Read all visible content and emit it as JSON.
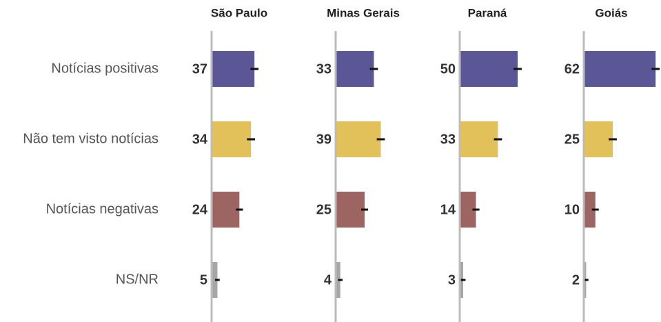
{
  "chart_data": {
    "type": "bar",
    "categories": [
      "Notícias positivas",
      "Não tem visto notícias",
      "Notícias negativas",
      "NS/NR"
    ],
    "colors": [
      "#5b5796",
      "#e3c15a",
      "#9c6562",
      "#a6a6a6"
    ],
    "xlim": [
      0,
      100
    ],
    "series": [
      {
        "name": "São Paulo",
        "values": [
          37,
          34,
          24,
          5
        ],
        "errors": [
          3.5,
          3.5,
          3,
          2
        ]
      },
      {
        "name": "Minas Gerais",
        "values": [
          33,
          39,
          25,
          4
        ],
        "errors": [
          3.5,
          3.5,
          3,
          2
        ]
      },
      {
        "name": "Paraná",
        "values": [
          50,
          33,
          14,
          3
        ],
        "errors": [
          3.5,
          3.5,
          3,
          2
        ]
      },
      {
        "name": "Goiás",
        "values": [
          62,
          25,
          10,
          2
        ],
        "errors": [
          3.5,
          3.5,
          3,
          2
        ]
      }
    ]
  }
}
